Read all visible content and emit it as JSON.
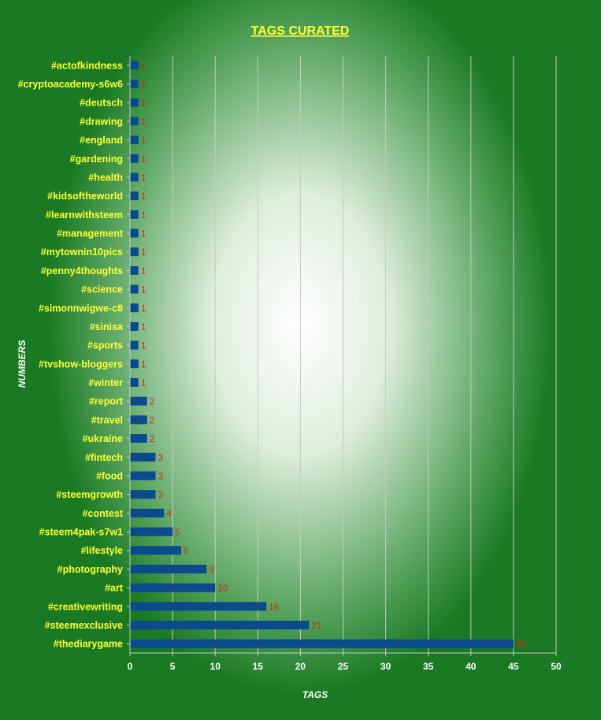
{
  "colors": {
    "background": "#1a7a23",
    "glow": "#ffffff",
    "bar": "#0b4a8c",
    "category_label": "#ffff33",
    "value_label": "#d42a1a",
    "tick_label": "#ffffff",
    "title": "#ffff33",
    "gridline": "#c8c8c8"
  },
  "chart_data": {
    "type": "bar",
    "orientation": "horizontal",
    "title": "TAGS CURATED",
    "xlabel": "TAGS",
    "ylabel": "NUMBERS",
    "xlim": [
      0,
      50
    ],
    "xticks": [
      0,
      5,
      10,
      15,
      20,
      25,
      30,
      35,
      40,
      45,
      50
    ],
    "grid": "vertical",
    "legend": "none",
    "categories": [
      "#actofkindness",
      "#cryptoacademy-s6w6",
      "#deutsch",
      "#drawing",
      "#england",
      "#gardening",
      "#health",
      "#kidsoftheworld",
      "#learnwithsteem",
      "#management",
      "#mytownin10pics",
      "#penny4thoughts",
      "#science",
      "#simonnwigwe-c8",
      "#sinisa",
      "#sports",
      "#tvshow-bloggers",
      "#winter",
      "#report",
      "#travel",
      "#ukraine",
      "#fintech",
      "#food",
      "#steemgrowth",
      "#contest",
      "#steem4pak-s7w1",
      "#lifestyle",
      "#photography",
      "#art",
      "#creativewriting",
      "#steemexclusive",
      "#thediarygame"
    ],
    "values": [
      1,
      1,
      1,
      1,
      1,
      1,
      1,
      1,
      1,
      1,
      1,
      1,
      1,
      1,
      1,
      1,
      1,
      1,
      2,
      2,
      2,
      3,
      3,
      3,
      4,
      5,
      6,
      9,
      10,
      16,
      21,
      45
    ]
  }
}
